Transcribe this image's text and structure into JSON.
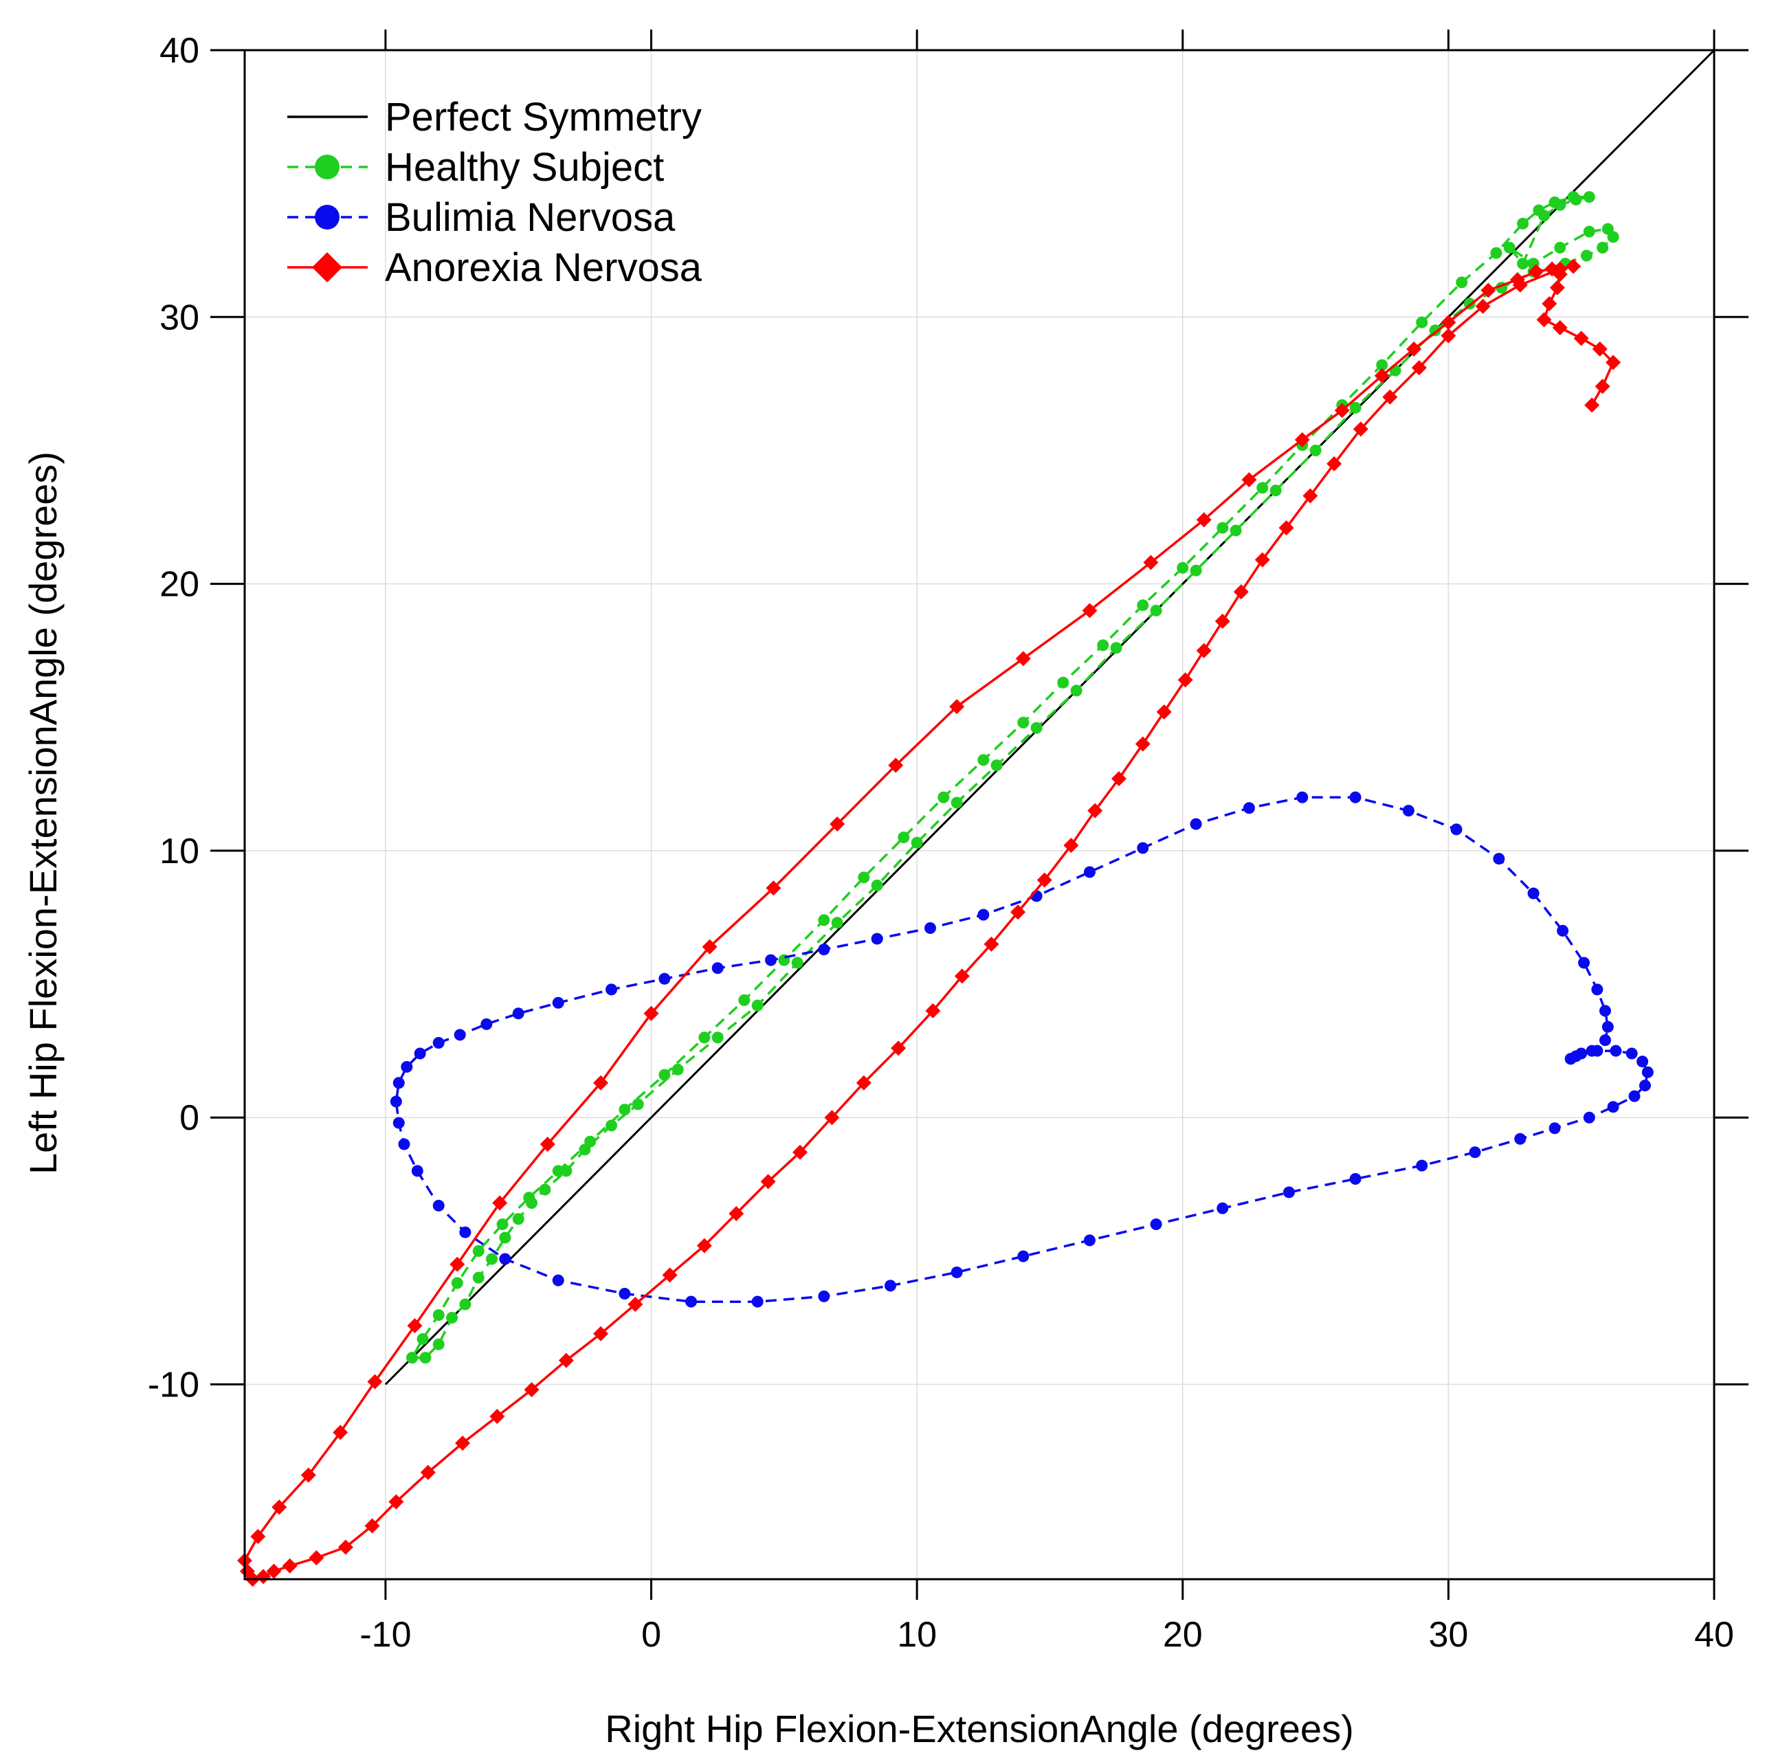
{
  "chart_data": {
    "type": "line",
    "title": "",
    "xlabel": "Right Hip Flexion-ExtensionAngle (degrees)",
    "ylabel": "Left Hip Flexion-ExtensionAngle (degrees)",
    "xlim": [
      -15.3,
      40
    ],
    "ylim": [
      -17.3,
      40
    ],
    "xticks": [
      -10,
      0,
      10,
      20,
      30,
      40
    ],
    "yticks": [
      -10,
      0,
      10,
      20,
      30,
      40
    ],
    "xtick_labels": [
      "-10",
      "0",
      "10",
      "20",
      "30",
      "40"
    ],
    "ytick_labels": [
      "-10",
      "0",
      "10",
      "20",
      "30",
      "40"
    ],
    "grid": true,
    "legend_position": "top-left",
    "series": [
      {
        "name": "Perfect Symmetry",
        "color": "#000000",
        "line": "solid",
        "marker": "none",
        "points": [
          [
            -10,
            -10
          ],
          [
            40,
            40
          ]
        ]
      },
      {
        "name": "Healthy Subject",
        "color": "#1fcf1f",
        "line": "dashed",
        "marker": "circle",
        "points": [
          [
            -9.0,
            -9.0
          ],
          [
            -8.5,
            -9.0
          ],
          [
            -8.0,
            -8.5
          ],
          [
            -7.5,
            -7.5
          ],
          [
            -7.0,
            -7.0
          ],
          [
            -6.5,
            -6.0
          ],
          [
            -6.0,
            -5.3
          ],
          [
            -5.5,
            -4.5
          ],
          [
            -5.0,
            -3.8
          ],
          [
            -4.5,
            -3.2
          ],
          [
            -4.0,
            -2.7
          ],
          [
            -3.2,
            -2.0
          ],
          [
            -2.5,
            -1.2
          ],
          [
            -1.5,
            -0.3
          ],
          [
            -0.5,
            0.5
          ],
          [
            1.0,
            1.8
          ],
          [
            2.5,
            3.0
          ],
          [
            4.0,
            4.2
          ],
          [
            5.5,
            5.8
          ],
          [
            7.0,
            7.3
          ],
          [
            8.5,
            8.7
          ],
          [
            10.0,
            10.3
          ],
          [
            11.5,
            11.8
          ],
          [
            13.0,
            13.2
          ],
          [
            14.5,
            14.6
          ],
          [
            16.0,
            16.0
          ],
          [
            17.5,
            17.6
          ],
          [
            19.0,
            19.0
          ],
          [
            20.5,
            20.5
          ],
          [
            22.0,
            22.0
          ],
          [
            23.5,
            23.5
          ],
          [
            25.0,
            25.0
          ],
          [
            26.5,
            26.6
          ],
          [
            28.0,
            28.0
          ],
          [
            29.5,
            29.5
          ],
          [
            30.8,
            30.5
          ],
          [
            32.0,
            31.1
          ],
          [
            33.2,
            31.7
          ],
          [
            34.4,
            32.0
          ],
          [
            35.2,
            32.3
          ],
          [
            35.8,
            32.6
          ],
          [
            36.2,
            33.0
          ],
          [
            36.0,
            33.3
          ],
          [
            35.3,
            33.2
          ],
          [
            34.2,
            32.6
          ],
          [
            33.2,
            32.0
          ],
          [
            32.3,
            32.6
          ],
          [
            32.8,
            32.0
          ],
          [
            33.6,
            33.8
          ],
          [
            34.2,
            34.2
          ],
          [
            34.8,
            34.4
          ],
          [
            35.3,
            34.5
          ],
          [
            34.7,
            34.5
          ],
          [
            34.0,
            34.3
          ],
          [
            33.4,
            34.0
          ],
          [
            32.8,
            33.5
          ],
          [
            31.8,
            32.4
          ],
          [
            30.5,
            31.3
          ],
          [
            29.0,
            29.8
          ],
          [
            27.5,
            28.2
          ],
          [
            26.0,
            26.7
          ],
          [
            24.5,
            25.2
          ],
          [
            23.0,
            23.6
          ],
          [
            21.5,
            22.1
          ],
          [
            20.0,
            20.6
          ],
          [
            18.5,
            19.2
          ],
          [
            17.0,
            17.7
          ],
          [
            15.5,
            16.3
          ],
          [
            14.0,
            14.8
          ],
          [
            12.5,
            13.4
          ],
          [
            11.0,
            12.0
          ],
          [
            9.5,
            10.5
          ],
          [
            8.0,
            9.0
          ],
          [
            6.5,
            7.4
          ],
          [
            5.0,
            5.9
          ],
          [
            3.5,
            4.4
          ],
          [
            2.0,
            3.0
          ],
          [
            0.5,
            1.6
          ],
          [
            -1.0,
            0.3
          ],
          [
            -2.3,
            -0.9
          ],
          [
            -3.5,
            -2.0
          ],
          [
            -4.6,
            -3.0
          ],
          [
            -5.6,
            -4.0
          ],
          [
            -6.5,
            -5.0
          ],
          [
            -7.3,
            -6.2
          ],
          [
            -8.0,
            -7.4
          ],
          [
            -8.6,
            -8.3
          ],
          [
            -9.0,
            -9.0
          ]
        ]
      },
      {
        "name": "Bulimia Nervosa",
        "color": "#0a0aee",
        "line": "dashed",
        "marker": "circle",
        "points": [
          [
            34.6,
            2.2
          ],
          [
            35.0,
            2.4
          ],
          [
            35.6,
            2.5
          ],
          [
            36.3,
            2.5
          ],
          [
            36.9,
            2.4
          ],
          [
            37.3,
            2.1
          ],
          [
            37.5,
            1.7
          ],
          [
            37.4,
            1.2
          ],
          [
            37.0,
            0.8
          ],
          [
            36.2,
            0.4
          ],
          [
            35.3,
            0.0
          ],
          [
            34.0,
            -0.4
          ],
          [
            32.7,
            -0.8
          ],
          [
            31.0,
            -1.3
          ],
          [
            29.0,
            -1.8
          ],
          [
            26.5,
            -2.3
          ],
          [
            24.0,
            -2.8
          ],
          [
            21.5,
            -3.4
          ],
          [
            19.0,
            -4.0
          ],
          [
            16.5,
            -4.6
          ],
          [
            14.0,
            -5.2
          ],
          [
            11.5,
            -5.8
          ],
          [
            9.0,
            -6.3
          ],
          [
            6.5,
            -6.7
          ],
          [
            4.0,
            -6.9
          ],
          [
            1.5,
            -6.9
          ],
          [
            -1.0,
            -6.6
          ],
          [
            -3.5,
            -6.1
          ],
          [
            -5.5,
            -5.3
          ],
          [
            -7.0,
            -4.3
          ],
          [
            -8.0,
            -3.3
          ],
          [
            -8.8,
            -2.0
          ],
          [
            -9.3,
            -1.0
          ],
          [
            -9.5,
            -0.2
          ],
          [
            -9.6,
            0.6
          ],
          [
            -9.5,
            1.3
          ],
          [
            -9.2,
            1.9
          ],
          [
            -8.7,
            2.4
          ],
          [
            -8.0,
            2.8
          ],
          [
            -7.2,
            3.1
          ],
          [
            -6.2,
            3.5
          ],
          [
            -5.0,
            3.9
          ],
          [
            -3.5,
            4.3
          ],
          [
            -1.5,
            4.8
          ],
          [
            0.5,
            5.2
          ],
          [
            2.5,
            5.6
          ],
          [
            4.5,
            5.9
          ],
          [
            6.5,
            6.3
          ],
          [
            8.5,
            6.7
          ],
          [
            10.5,
            7.1
          ],
          [
            12.5,
            7.6
          ],
          [
            14.5,
            8.3
          ],
          [
            16.5,
            9.2
          ],
          [
            18.5,
            10.1
          ],
          [
            20.5,
            11.0
          ],
          [
            22.5,
            11.6
          ],
          [
            24.5,
            12.0
          ],
          [
            26.5,
            12.0
          ],
          [
            28.5,
            11.5
          ],
          [
            30.3,
            10.8
          ],
          [
            31.9,
            9.7
          ],
          [
            33.2,
            8.4
          ],
          [
            34.3,
            7.0
          ],
          [
            35.1,
            5.8
          ],
          [
            35.6,
            4.8
          ],
          [
            35.9,
            4.0
          ],
          [
            36.0,
            3.4
          ],
          [
            35.9,
            2.9
          ],
          [
            35.4,
            2.5
          ],
          [
            34.8,
            2.3
          ],
          [
            34.6,
            2.2
          ]
        ]
      },
      {
        "name": "Anorexia Nervosa",
        "color": "#ff0000",
        "line": "solid",
        "marker": "diamond",
        "points": [
          [
            35.4,
            26.7
          ],
          [
            35.8,
            27.4
          ],
          [
            36.2,
            28.3
          ],
          [
            35.7,
            28.8
          ],
          [
            35.0,
            29.2
          ],
          [
            34.2,
            29.6
          ],
          [
            33.6,
            29.9
          ],
          [
            33.8,
            30.5
          ],
          [
            34.1,
            31.1
          ],
          [
            34.2,
            31.6
          ],
          [
            33.9,
            31.8
          ],
          [
            33.3,
            31.7
          ],
          [
            32.6,
            31.4
          ],
          [
            31.5,
            31.0
          ],
          [
            30.0,
            29.8
          ],
          [
            28.7,
            28.8
          ],
          [
            27.5,
            27.8
          ],
          [
            26.0,
            26.5
          ],
          [
            24.5,
            25.4
          ],
          [
            22.5,
            23.9
          ],
          [
            20.8,
            22.4
          ],
          [
            18.8,
            20.8
          ],
          [
            16.5,
            19.0
          ],
          [
            14.0,
            17.2
          ],
          [
            11.5,
            15.4
          ],
          [
            9.2,
            13.2
          ],
          [
            7.0,
            11.0
          ],
          [
            4.6,
            8.6
          ],
          [
            2.2,
            6.4
          ],
          [
            0.0,
            3.9
          ],
          [
            -1.9,
            1.3
          ],
          [
            -3.9,
            -1.0
          ],
          [
            -5.7,
            -3.2
          ],
          [
            -7.3,
            -5.5
          ],
          [
            -8.9,
            -7.8
          ],
          [
            -10.4,
            -9.9
          ],
          [
            -11.7,
            -11.8
          ],
          [
            -12.9,
            -13.4
          ],
          [
            -14.0,
            -14.6
          ],
          [
            -14.8,
            -15.7
          ],
          [
            -15.3,
            -16.6
          ],
          [
            -15.2,
            -17.0
          ],
          [
            -15.0,
            -17.3
          ],
          [
            -14.6,
            -17.2
          ],
          [
            -14.2,
            -17.0
          ],
          [
            -13.6,
            -16.8
          ],
          [
            -12.6,
            -16.5
          ],
          [
            -11.5,
            -16.1
          ],
          [
            -10.5,
            -15.3
          ],
          [
            -9.6,
            -14.4
          ],
          [
            -8.4,
            -13.3
          ],
          [
            -7.1,
            -12.2
          ],
          [
            -5.8,
            -11.2
          ],
          [
            -4.5,
            -10.2
          ],
          [
            -3.2,
            -9.1
          ],
          [
            -1.9,
            -8.1
          ],
          [
            -0.6,
            -7.0
          ],
          [
            0.7,
            -5.9
          ],
          [
            2.0,
            -4.8
          ],
          [
            3.2,
            -3.6
          ],
          [
            4.4,
            -2.4
          ],
          [
            5.6,
            -1.3
          ],
          [
            6.8,
            0.0
          ],
          [
            8.0,
            1.3
          ],
          [
            9.3,
            2.6
          ],
          [
            10.6,
            4.0
          ],
          [
            11.7,
            5.3
          ],
          [
            12.8,
            6.5
          ],
          [
            13.8,
            7.7
          ],
          [
            14.8,
            8.9
          ],
          [
            15.8,
            10.2
          ],
          [
            16.7,
            11.5
          ],
          [
            17.6,
            12.7
          ],
          [
            18.5,
            14.0
          ],
          [
            19.3,
            15.2
          ],
          [
            20.1,
            16.4
          ],
          [
            20.8,
            17.5
          ],
          [
            21.5,
            18.6
          ],
          [
            22.2,
            19.7
          ],
          [
            23.0,
            20.9
          ],
          [
            23.9,
            22.1
          ],
          [
            24.8,
            23.3
          ],
          [
            25.7,
            24.5
          ],
          [
            26.7,
            25.8
          ],
          [
            27.8,
            27.0
          ],
          [
            28.9,
            28.1
          ],
          [
            30.0,
            29.3
          ],
          [
            31.3,
            30.4
          ],
          [
            32.7,
            31.2
          ],
          [
            34.2,
            31.8
          ],
          [
            34.7,
            31.9
          ]
        ]
      }
    ]
  }
}
